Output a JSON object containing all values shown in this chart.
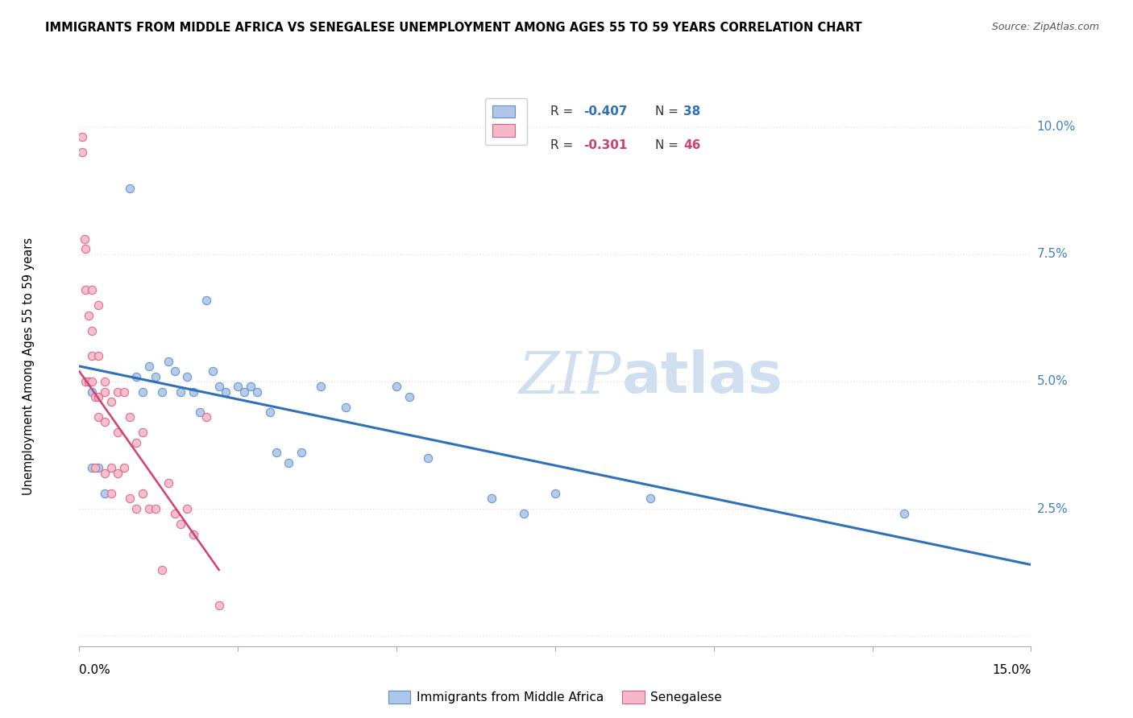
{
  "title": "IMMIGRANTS FROM MIDDLE AFRICA VS SENEGALESE UNEMPLOYMENT AMONG AGES 55 TO 59 YEARS CORRELATION CHART",
  "source": "Source: ZipAtlas.com",
  "ylabel": "Unemployment Among Ages 55 to 59 years",
  "y_ticks": [
    0.0,
    0.025,
    0.05,
    0.075,
    0.1
  ],
  "y_tick_labels": [
    "",
    "2.5%",
    "5.0%",
    "7.5%",
    "10.0%"
  ],
  "x_range": [
    0.0,
    0.15
  ],
  "y_range": [
    -0.002,
    0.108
  ],
  "blue_scatter_x": [
    0.002,
    0.003,
    0.008,
    0.009,
    0.01,
    0.011,
    0.012,
    0.013,
    0.014,
    0.015,
    0.016,
    0.017,
    0.018,
    0.019,
    0.02,
    0.021,
    0.022,
    0.023,
    0.025,
    0.026,
    0.027,
    0.028,
    0.03,
    0.031,
    0.033,
    0.035,
    0.038,
    0.042,
    0.05,
    0.052,
    0.055,
    0.065,
    0.07,
    0.075,
    0.09,
    0.13,
    0.002,
    0.004
  ],
  "blue_scatter_y": [
    0.048,
    0.033,
    0.088,
    0.051,
    0.048,
    0.053,
    0.051,
    0.048,
    0.054,
    0.052,
    0.048,
    0.051,
    0.048,
    0.044,
    0.066,
    0.052,
    0.049,
    0.048,
    0.049,
    0.048,
    0.049,
    0.048,
    0.044,
    0.036,
    0.034,
    0.036,
    0.049,
    0.045,
    0.049,
    0.047,
    0.035,
    0.027,
    0.024,
    0.028,
    0.027,
    0.024,
    0.033,
    0.028
  ],
  "pink_scatter_x": [
    0.0005,
    0.0005,
    0.0008,
    0.001,
    0.001,
    0.001,
    0.0015,
    0.0015,
    0.002,
    0.002,
    0.002,
    0.002,
    0.0025,
    0.0025,
    0.003,
    0.003,
    0.003,
    0.003,
    0.004,
    0.004,
    0.004,
    0.004,
    0.005,
    0.005,
    0.005,
    0.006,
    0.006,
    0.006,
    0.007,
    0.007,
    0.008,
    0.008,
    0.009,
    0.009,
    0.01,
    0.01,
    0.011,
    0.012,
    0.013,
    0.014,
    0.015,
    0.016,
    0.017,
    0.018,
    0.02,
    0.022
  ],
  "pink_scatter_y": [
    0.098,
    0.095,
    0.078,
    0.076,
    0.068,
    0.05,
    0.063,
    0.05,
    0.068,
    0.06,
    0.055,
    0.05,
    0.047,
    0.033,
    0.065,
    0.055,
    0.047,
    0.043,
    0.05,
    0.048,
    0.042,
    0.032,
    0.046,
    0.033,
    0.028,
    0.048,
    0.04,
    0.032,
    0.048,
    0.033,
    0.043,
    0.027,
    0.038,
    0.025,
    0.04,
    0.028,
    0.025,
    0.025,
    0.013,
    0.03,
    0.024,
    0.022,
    0.025,
    0.02,
    0.043,
    0.006
  ],
  "blue_line_x": [
    0.0,
    0.15
  ],
  "blue_line_y": [
    0.053,
    0.014
  ],
  "pink_line_x": [
    0.0,
    0.022
  ],
  "pink_line_y": [
    0.052,
    0.013
  ],
  "blue_color": "#aec6e8",
  "pink_color": "#f4b8c8",
  "blue_edge_color": "#5b8fc9",
  "pink_edge_color": "#d96080",
  "blue_line_color": "#3070b8",
  "pink_line_color": "#d04070",
  "watermark_color": "#d0dff0",
  "background_color": "#ffffff",
  "grid_color": "#e0e0e0",
  "right_tick_color": "#4080c0"
}
